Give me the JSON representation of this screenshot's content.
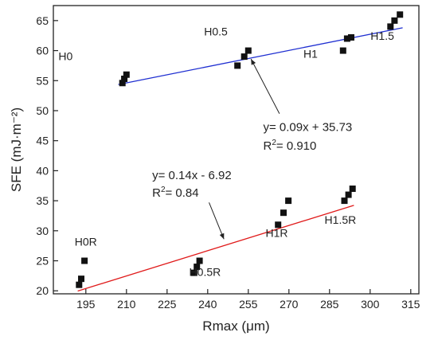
{
  "chart_data": {
    "type": "scatter",
    "xlabel": "Rmax (μm)",
    "ylabel": "SFE (mJ·m⁻²)",
    "xlim": [
      183,
      318
    ],
    "ylim": [
      19.5,
      67.5
    ],
    "xticks": [
      195,
      210,
      225,
      240,
      255,
      270,
      285,
      300,
      315
    ],
    "yticks": [
      20,
      25,
      30,
      35,
      40,
      45,
      50,
      55,
      60,
      65
    ],
    "grid": false,
    "series": [
      {
        "color": "#1f2fd1",
        "points": [
          {
            "x": 208.5,
            "y": 54.6
          },
          {
            "x": 209.2,
            "y": 55.3
          },
          {
            "x": 210,
            "y": 56
          },
          {
            "x": 251,
            "y": 57.5
          },
          {
            "x": 253.5,
            "y": 59
          },
          {
            "x": 255,
            "y": 60
          },
          {
            "x": 290,
            "y": 60
          },
          {
            "x": 291.5,
            "y": 62
          },
          {
            "x": 293,
            "y": 62.2
          },
          {
            "x": 307.5,
            "y": 64
          },
          {
            "x": 309,
            "y": 65
          },
          {
            "x": 311,
            "y": 66
          }
        ],
        "fit": {
          "slope": 0.09,
          "intercept": 35.73,
          "x_range": [
            207,
            312
          ]
        }
      },
      {
        "color": "#e01a1a",
        "points": [
          {
            "x": 192.5,
            "y": 21
          },
          {
            "x": 193.3,
            "y": 22
          },
          {
            "x": 194.5,
            "y": 25
          },
          {
            "x": 235,
            "y": 23
          },
          {
            "x": 236,
            "y": 24
          },
          {
            "x": 237,
            "y": 25
          },
          {
            "x": 266,
            "y": 31
          },
          {
            "x": 268,
            "y": 33
          },
          {
            "x": 269.8,
            "y": 35
          },
          {
            "x": 290.5,
            "y": 35
          },
          {
            "x": 292,
            "y": 36
          },
          {
            "x": 293.5,
            "y": 37
          }
        ],
        "fit": {
          "slope": 0.14,
          "intercept": -6.92,
          "x_range": [
            192,
            294
          ]
        }
      }
    ],
    "annotations": {
      "blue_equation": "y=  0.09x + 35.73",
      "blue_r2_prefix": "R",
      "blue_r2_exp": "2",
      "blue_r2_value": "= 0.910",
      "red_equation": "y=  0.14x - 6.92",
      "red_r2_prefix": "R",
      "red_r2_exp": "2",
      "red_r2_value": "= 0.84"
    },
    "group_labels": [
      {
        "text": "H0",
        "x": 187.5,
        "y": 58.4
      },
      {
        "text": "H0.5",
        "x": 243,
        "y": 62.5
      },
      {
        "text": "H1",
        "x": 278,
        "y": 58.8
      },
      {
        "text": "H1.5",
        "x": 304.5,
        "y": 61.8
      },
      {
        "text": "H0R",
        "x": 195,
        "y": 27.5
      },
      {
        "text": "H0.5R",
        "x": 239,
        "y": 22.5
      },
      {
        "text": "H1R",
        "x": 265.5,
        "y": 29
      },
      {
        "text": "H1.5R",
        "x": 289,
        "y": 31.2
      }
    ],
    "arrows": [
      {
        "series": 0,
        "from": {
          "x": 266.5,
          "y": 49.5
        },
        "to": {
          "x": 256,
          "y": 58.6
        }
      },
      {
        "series": 1,
        "from": {
          "x": 240.5,
          "y": 34.7
        },
        "to": {
          "x": 246,
          "y": 28.6
        }
      }
    ]
  }
}
